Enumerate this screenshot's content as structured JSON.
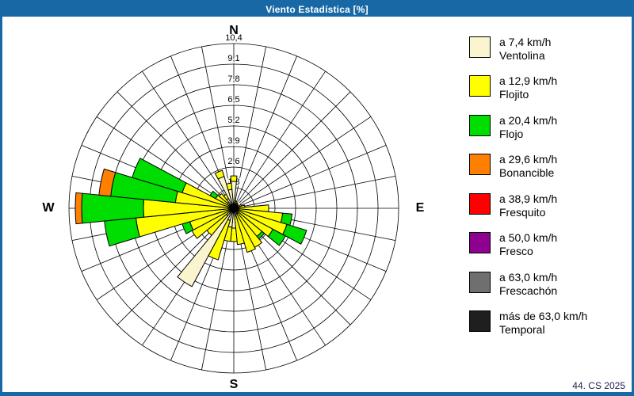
{
  "window": {
    "title": "Viento Estadística [%]",
    "footer": "44. CS 2025"
  },
  "colors": {
    "title_bar": "#1768A5",
    "window_border": "#1768A5",
    "grid": "#000000",
    "background": "#ffffff"
  },
  "cardinals": {
    "n": "N",
    "e": "E",
    "s": "S",
    "w": "W"
  },
  "legend": {
    "items": [
      {
        "speed": "a 7,4 km/h",
        "name": "Ventolina",
        "color": "#FAF5CE"
      },
      {
        "speed": "a 12,9 km/h",
        "name": "Flojito",
        "color": "#FFFF00"
      },
      {
        "speed": "a 20,4 km/h",
        "name": "Flojo",
        "color": "#00DD00"
      },
      {
        "speed": "a 29,6 km/h",
        "name": "Bonancible",
        "color": "#FF8000"
      },
      {
        "speed": "a 38,9 km/h",
        "name": "Fresquito",
        "color": "#FF0000"
      },
      {
        "speed": "a 50,0 km/h",
        "name": "Fresco",
        "color": "#8E0090"
      },
      {
        "speed": "a 63,0 km/h",
        "name": "Frescachón",
        "color": "#6F6F6F"
      },
      {
        "speed": "más de 63,0 km/h",
        "name": "Temporal",
        "color": "#1F1F1F"
      }
    ]
  },
  "chart_data": {
    "type": "wind-rose (stacked polar bar)",
    "title": "Viento Estadística [%]",
    "units": "%",
    "max_radius": 10.4,
    "ring_values": [
      1.3,
      2.6,
      3.9,
      5.2,
      6.5,
      7.8,
      9.1,
      10.4
    ],
    "ring_labels": [
      "1,3",
      "2,6",
      "3,9",
      "5,2",
      "6,5",
      "7,8",
      "9,1",
      "10,4"
    ],
    "sector_width_deg": 11.25,
    "directions_deg": [
      0,
      11.25,
      22.5,
      33.75,
      45,
      56.25,
      67.5,
      78.75,
      90,
      101.25,
      112.5,
      123.75,
      135,
      146.25,
      157.5,
      168.75,
      180,
      191.25,
      202.5,
      213.75,
      225,
      236.25,
      247.5,
      258.75,
      270,
      281.25,
      292.5,
      303.75,
      315,
      326.25,
      337.5,
      348.75
    ],
    "series": [
      {
        "name": "Ventolina",
        "speed": "a 7,4 km/h",
        "color": "#FAF5CE",
        "values": [
          1.7,
          0.3,
          0.25,
          0.3,
          0.25,
          0.2,
          0.3,
          0.3,
          0.3,
          0.3,
          0.3,
          0.3,
          0.3,
          0.4,
          0.4,
          0.5,
          1.25,
          1.2,
          0.8,
          5.6,
          0.6,
          0.3,
          0.3,
          0.3,
          0.3,
          0.3,
          0.3,
          0.3,
          0.5,
          0.7,
          2.1,
          1.2
        ]
      },
      {
        "name": "Flojito",
        "speed": "a 12,9 km/h",
        "color": "#FFFF00",
        "values": [
          0.35,
          0.2,
          0.2,
          0.1,
          0.1,
          0.1,
          0.2,
          0.4,
          1.9,
          2.8,
          3.2,
          2.5,
          2.0,
          2.4,
          2.5,
          1.8,
          0.85,
          0.9,
          2.6,
          0,
          1.6,
          2.7,
          2.6,
          5.9,
          5.4,
          3.4,
          3.1,
          1.0,
          0.7,
          0.3,
          0.4,
          0.4
        ]
      },
      {
        "name": "Flojo",
        "speed": "a 20,4 km/h",
        "color": "#00DD00",
        "values": [
          0,
          0,
          0,
          0,
          0,
          0,
          0,
          0,
          0,
          0.6,
          1.3,
          0.9,
          0.2,
          0,
          0,
          0,
          0,
          0,
          0,
          0,
          0,
          0,
          0.5,
          2.0,
          3.9,
          4.1,
          3.3,
          0.4,
          0,
          0,
          0,
          0
        ]
      },
      {
        "name": "Bonancible",
        "speed": "a 29,6 km/h",
        "color": "#FF8000",
        "values": [
          0,
          0,
          0,
          0,
          0,
          0,
          0,
          0,
          0,
          0,
          0,
          0,
          0,
          0,
          0,
          0,
          0,
          0,
          0,
          0,
          0,
          0,
          0,
          0,
          0.4,
          0.75,
          0,
          0,
          0,
          0,
          0,
          0
        ]
      },
      {
        "name": "Fresquito",
        "speed": "a 38,9 km/h",
        "color": "#FF0000",
        "values": [
          0,
          0,
          0,
          0,
          0,
          0,
          0,
          0,
          0,
          0,
          0,
          0,
          0,
          0,
          0,
          0,
          0,
          0,
          0,
          0,
          0,
          0,
          0,
          0,
          0,
          0,
          0,
          0,
          0,
          0,
          0,
          0
        ]
      },
      {
        "name": "Fresco",
        "speed": "a 50,0 km/h",
        "color": "#8E0090",
        "values": [
          0,
          0,
          0,
          0,
          0,
          0,
          0,
          0,
          0,
          0,
          0,
          0,
          0,
          0,
          0,
          0,
          0,
          0,
          0,
          0,
          0,
          0,
          0,
          0,
          0,
          0,
          0,
          0,
          0,
          0,
          0,
          0
        ]
      },
      {
        "name": "Frescachón",
        "speed": "a 63,0 km/h",
        "color": "#6F6F6F",
        "values": [
          0,
          0,
          0,
          0,
          0,
          0,
          0,
          0,
          0,
          0,
          0,
          0,
          0,
          0,
          0,
          0,
          0,
          0,
          0,
          0,
          0,
          0,
          0,
          0,
          0,
          0,
          0,
          0,
          0,
          0,
          0,
          0
        ]
      },
      {
        "name": "Temporal",
        "speed": "más de 63,0 km/h",
        "color": "#1F1F1F",
        "values": [
          0,
          0,
          0,
          0,
          0,
          0,
          0,
          0,
          0,
          0,
          0,
          0,
          0,
          0,
          0,
          0,
          0,
          0,
          0,
          0,
          0,
          0,
          0,
          0,
          0,
          0,
          0,
          0,
          0,
          0,
          0,
          0
        ]
      }
    ],
    "grid": "polar, 8 rings, 32 spokes",
    "legend_position": "right"
  }
}
